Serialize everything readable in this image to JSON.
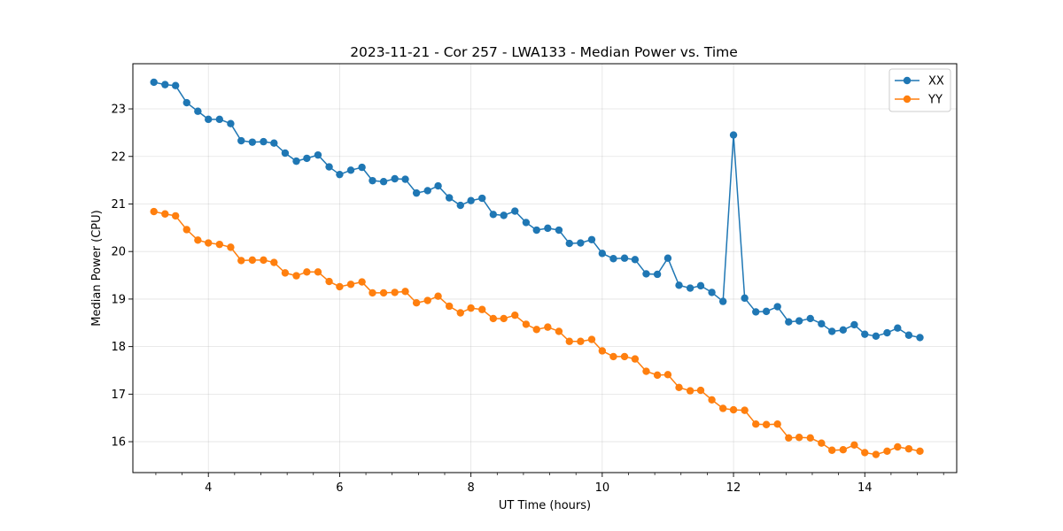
{
  "chart_data": {
    "type": "line",
    "title": "2023-11-21 - Cor 257 - LWA133 - Median Power vs. Time",
    "xlabel": "UT Time (hours)",
    "ylabel": "Median Power (CPU)",
    "xlim": [
      2.85,
      15.4
    ],
    "ylim": [
      15.35,
      23.95
    ],
    "xticks": [
      4,
      6,
      8,
      10,
      12,
      14
    ],
    "xticks_minor_step": 0.4,
    "yticks": [
      16,
      17,
      18,
      19,
      20,
      21,
      22,
      23
    ],
    "grid": true,
    "legend_position": "top-right",
    "x": [
      3.17,
      3.34,
      3.5,
      3.67,
      3.84,
      4.0,
      4.17,
      4.34,
      4.5,
      4.67,
      4.84,
      5.0,
      5.17,
      5.34,
      5.5,
      5.67,
      5.84,
      6.0,
      6.17,
      6.34,
      6.5,
      6.67,
      6.84,
      7.0,
      7.17,
      7.34,
      7.5,
      7.67,
      7.84,
      8.0,
      8.17,
      8.34,
      8.5,
      8.67,
      8.84,
      9.0,
      9.17,
      9.34,
      9.5,
      9.67,
      9.84,
      10.0,
      10.17,
      10.34,
      10.5,
      10.67,
      10.84,
      11.0,
      11.17,
      11.34,
      11.5,
      11.67,
      11.84,
      12.0,
      12.17,
      12.34,
      12.5,
      12.67,
      12.84,
      13.0,
      13.17,
      13.34,
      13.5,
      13.67,
      13.84,
      14.0,
      14.17,
      14.34,
      14.5,
      14.67,
      14.84
    ],
    "series": [
      {
        "name": "XX",
        "color": "#1f77b4",
        "values": [
          23.56,
          23.51,
          23.49,
          23.13,
          22.95,
          22.78,
          22.78,
          22.69,
          22.33,
          22.3,
          22.31,
          22.28,
          22.07,
          21.9,
          21.96,
          22.03,
          21.78,
          21.62,
          21.71,
          21.77,
          21.49,
          21.47,
          21.53,
          21.52,
          21.23,
          21.28,
          21.38,
          21.13,
          20.97,
          21.07,
          21.12,
          20.78,
          20.76,
          20.85,
          20.61,
          20.45,
          20.49,
          20.45,
          20.17,
          20.18,
          20.25,
          19.96,
          19.85,
          19.86,
          19.83,
          19.53,
          19.52,
          19.86,
          19.29,
          19.23,
          19.28,
          19.14,
          18.95,
          22.45,
          19.02,
          18.73,
          18.74,
          18.84,
          18.52,
          18.54,
          18.59,
          18.48,
          18.32,
          18.35,
          18.46,
          18.26,
          18.22,
          18.29,
          18.39,
          18.24,
          18.19
        ]
      },
      {
        "name": "YY",
        "color": "#ff7f0e",
        "values": [
          20.84,
          20.79,
          20.75,
          20.46,
          20.24,
          20.18,
          20.15,
          20.09,
          19.81,
          19.82,
          19.82,
          19.77,
          19.55,
          19.49,
          19.57,
          19.57,
          19.37,
          19.26,
          19.31,
          19.36,
          19.13,
          19.13,
          19.14,
          19.16,
          18.92,
          18.97,
          19.06,
          18.85,
          18.71,
          18.81,
          18.78,
          18.59,
          18.59,
          18.66,
          18.47,
          18.36,
          18.41,
          18.32,
          18.11,
          18.11,
          18.15,
          17.91,
          17.79,
          17.79,
          17.74,
          17.48,
          17.4,
          17.41,
          17.14,
          17.07,
          17.08,
          16.88,
          16.7,
          16.67,
          16.66,
          16.37,
          16.36,
          16.37,
          16.08,
          16.09,
          16.08,
          15.97,
          15.82,
          15.83,
          15.93,
          15.77,
          15.73,
          15.8,
          15.89,
          15.85,
          15.8
        ]
      }
    ]
  }
}
